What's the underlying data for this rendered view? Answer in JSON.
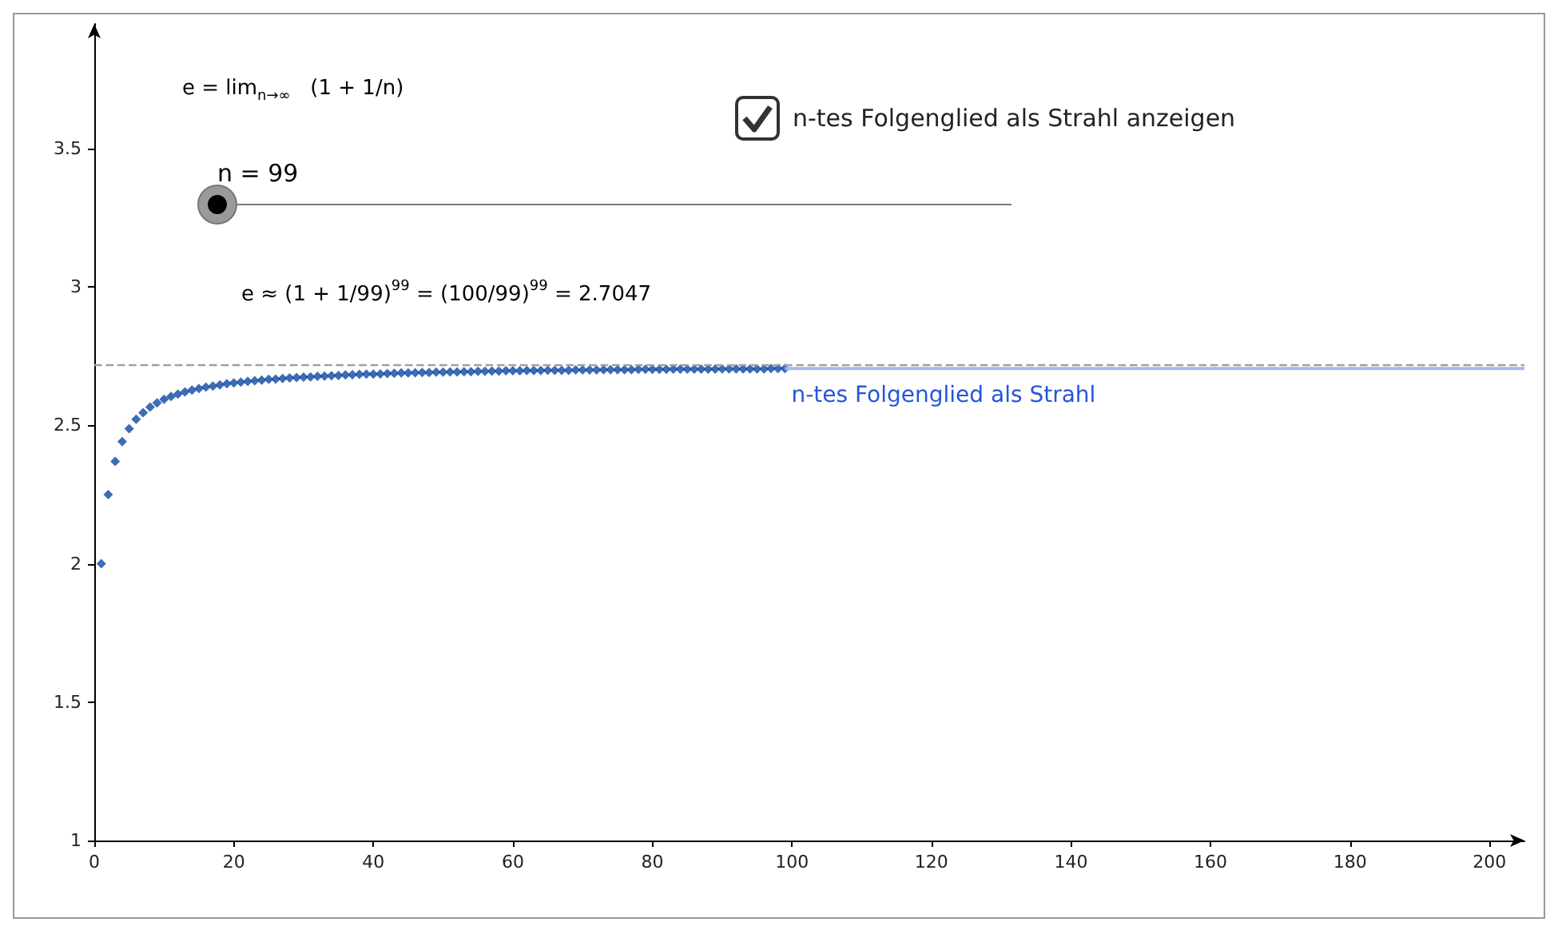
{
  "chart_data": {
    "type": "scatter",
    "marker": "diamond",
    "grid": false,
    "legend": false,
    "xlim": [
      0,
      205
    ],
    "xticks": [
      0,
      20,
      40,
      60,
      80,
      100,
      120,
      140,
      160,
      180,
      200
    ],
    "ylim": [
      1,
      3.95
    ],
    "yticks": [
      1,
      1.5,
      2,
      2.5,
      3,
      3.5
    ],
    "series": [
      {
        "color": "#0d47a1",
        "x": [
          1,
          2,
          3,
          4,
          5,
          6,
          7,
          8,
          9,
          10,
          11,
          12,
          13,
          14,
          15,
          16,
          17,
          18,
          19,
          20,
          21,
          22,
          23,
          24,
          25,
          26,
          27,
          28,
          29,
          30,
          31,
          32,
          33,
          34,
          35,
          36,
          37,
          38,
          39,
          40,
          41,
          42,
          43,
          44,
          45,
          46,
          47,
          48,
          49,
          50,
          51,
          52,
          53,
          54,
          55,
          56,
          57,
          58,
          59,
          60,
          61,
          62,
          63,
          64,
          65,
          66,
          67,
          68,
          69,
          70,
          71,
          72,
          73,
          74,
          75,
          76,
          77,
          78,
          79,
          80,
          81,
          82,
          83,
          84,
          85,
          86,
          87,
          88,
          89,
          90,
          91,
          92,
          93,
          94,
          95,
          96,
          97,
          98,
          99
        ],
        "values": [
          2,
          2.25,
          2.37,
          2.441,
          2.488,
          2.522,
          2.546,
          2.566,
          2.581,
          2.594,
          2.604,
          2.613,
          2.621,
          2.627,
          2.633,
          2.638,
          2.642,
          2.646,
          2.65,
          2.653,
          2.656,
          2.659,
          2.661,
          2.663,
          2.666,
          2.667,
          2.669,
          2.671,
          2.673,
          2.674,
          2.675,
          2.677,
          2.678,
          2.679,
          2.68,
          2.682,
          2.683,
          2.684,
          2.685,
          2.685,
          2.686,
          2.687,
          2.688,
          2.689,
          2.689,
          2.69,
          2.691,
          2.691,
          2.692,
          2.692,
          2.693,
          2.693,
          2.694,
          2.694,
          2.695,
          2.695,
          2.696,
          2.696,
          2.697,
          2.697,
          2.697,
          2.698,
          2.698,
          2.698,
          2.699,
          2.699,
          2.699,
          2.699,
          2.7,
          2.7,
          2.7,
          2.7,
          2.701,
          2.701,
          2.701,
          2.701,
          2.701,
          2.702,
          2.702,
          2.702,
          2.702,
          2.702,
          2.703,
          2.703,
          2.703,
          2.703,
          2.703,
          2.703,
          2.703,
          2.704,
          2.704,
          2.704,
          2.704,
          2.704,
          2.704,
          2.704,
          2.705,
          2.705,
          2.705
        ]
      },
      {
        "type": "line",
        "name": "n-tes Folgenglied als Strahl",
        "color": "#a9b8ec",
        "line_style": "solid",
        "marker": "none",
        "x": [
          99,
          205
        ],
        "values": [
          2.705,
          2.705
        ]
      }
    ],
    "ref_lines": [
      {
        "axis": "y",
        "value": 2.718,
        "color": "#a0a0a0",
        "line_style": "dashed"
      }
    ],
    "annotations": [
      "e = lim$_{n→∞}$   (1 + 1/n)",
      "n = 99",
      "e ≈ (1 + 1/99)$^{99}$ = (100/99)$^{99}$ = 2.7047",
      "n-tes Folgenglied als Strahl anzeigen"
    ]
  }
}
